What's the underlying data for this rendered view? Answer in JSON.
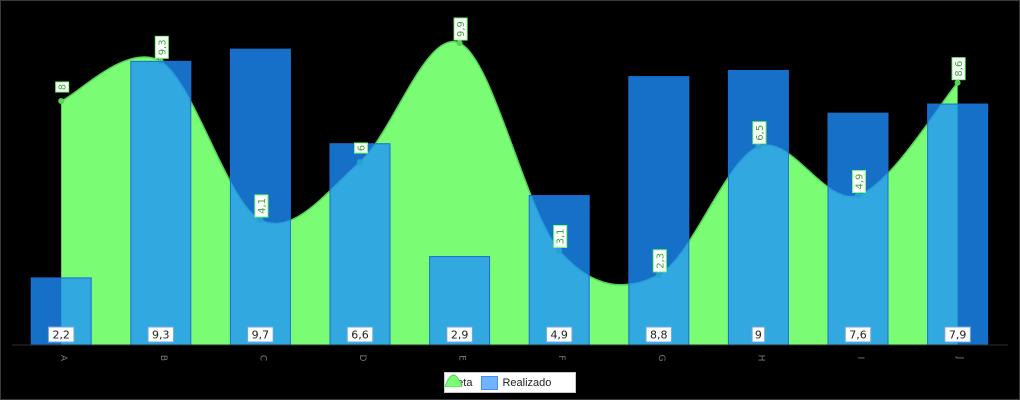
{
  "chart_data": {
    "type": "bar",
    "categories": [
      "A",
      "B",
      "C",
      "D",
      "E",
      "F",
      "G",
      "H",
      "I",
      "J"
    ],
    "ylim": [
      0,
      10.5
    ],
    "grid": false,
    "legend_position": "bottom",
    "series": [
      {
        "name": "Meta",
        "kind": "area-spline",
        "color": "#7bfc75",
        "values": [
          8,
          9.3,
          4.1,
          6,
          9.9,
          3.1,
          2.3,
          6.5,
          4.9,
          8.6
        ],
        "labels": [
          "8",
          "9,3",
          "4,1",
          "6",
          "9,9",
          "3,1",
          "2,3",
          "6,5",
          "4,9",
          "8,6"
        ]
      },
      {
        "name": "Realizado",
        "kind": "bar",
        "color": "#1e90ff",
        "values": [
          2.2,
          9.3,
          9.7,
          6.6,
          2.9,
          4.9,
          8.8,
          9,
          7.6,
          7.9
        ],
        "labels": [
          "2,2",
          "9,3",
          "9,7",
          "6,6",
          "2,9",
          "4,9",
          "8,8",
          "9",
          "7,6",
          "7,9"
        ]
      }
    ]
  },
  "legend": {
    "meta_label": "Meta",
    "realizado_label": "Realizado"
  },
  "colors": {
    "meta_fill": "#7bfc75",
    "meta_line": "#55d455",
    "bar_fill": "#1e90ff",
    "bar_overlap": "rgba(30,144,255,0.78)"
  }
}
